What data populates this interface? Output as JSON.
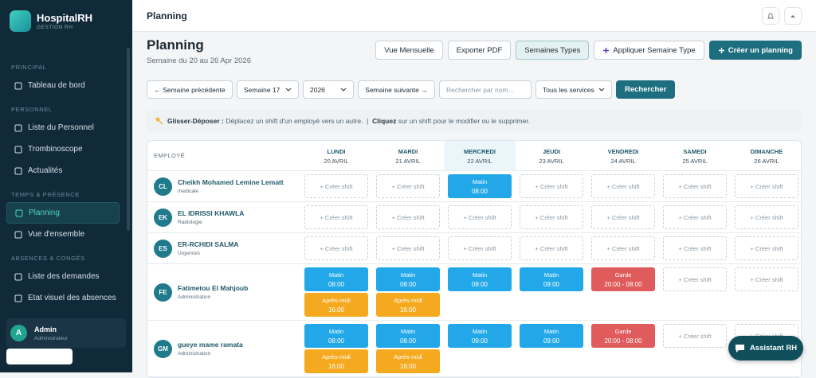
{
  "sidebar": {
    "brand": "HospitalRH",
    "tagline": "GESTION RH",
    "sections": [
      {
        "title": "PRINCIPAL",
        "items": [
          "Tableau de bord"
        ]
      },
      {
        "title": "PERSONNEL",
        "items": [
          "Liste du Personnel",
          "Trombinoscope",
          "Actualités"
        ]
      },
      {
        "title": "TEMPS & PRÉSENCE",
        "items": [
          "Planning",
          "Vue d'ensemble"
        ]
      },
      {
        "title": "ABSENCES & CONGÉS",
        "items": [
          "Liste des demandes",
          "Etat visuel des absences"
        ]
      }
    ],
    "active_item": "Planning",
    "user": {
      "initial": "A",
      "name": "Admin",
      "role": "Administrateur"
    }
  },
  "topbar": {
    "title": "Planning"
  },
  "header": {
    "title": "Planning",
    "subtitle": "Semaine du 20 au 26 Apr 2026",
    "buttons": [
      "Vue Mensuelle",
      "Exporter PDF",
      "Semaines Types",
      "Appliquer Semaine Type",
      "Créer un planning"
    ]
  },
  "filters": {
    "prev": "← Semaine précédente",
    "week": "Semaine 17",
    "year": "2026",
    "next": "Semaine suivante →",
    "search_placeholder": "Rechercher par nom...",
    "service": "Tous les services",
    "search_button": "Rechercher"
  },
  "hint": {
    "drag_label": "Glisser-Déposer :",
    "drag_text": " Déplacez un shift d'un employé vers un autre.  |  ",
    "click_label": "Cliquez",
    "click_text": " sur un shift pour le modifier ou le supprimer."
  },
  "planning": {
    "employee_header": "EMPLOYÉ",
    "create_label": "+ Créer shift",
    "days": [
      {
        "name": "LUNDI",
        "date": "20 AVRIL"
      },
      {
        "name": "MARDI",
        "date": "21 AVRIL"
      },
      {
        "name": "MERCREDI",
        "date": "22 AVRIL"
      },
      {
        "name": "JEUDI",
        "date": "23 AVRIL"
      },
      {
        "name": "VENDREDI",
        "date": "24 AVRIL"
      },
      {
        "name": "SAMEDI",
        "date": "25 AVRIL"
      },
      {
        "name": "DIMANCHE",
        "date": "26 AVRIL"
      }
    ],
    "highlight_day": 2,
    "rows": [
      {
        "initials": "CL",
        "name": "Cheikh Mohamed Lemine Lematt",
        "department": "medicale",
        "cells": [
          [],
          [],
          [
            {
              "label": "Matin",
              "time": "08:00",
              "kind": "matin"
            }
          ],
          [],
          [],
          [],
          []
        ]
      },
      {
        "initials": "EK",
        "name": "EL IDRISSI KHAWLA",
        "department": "Radiologie",
        "cells": [
          [],
          [],
          [],
          [],
          [],
          [],
          []
        ]
      },
      {
        "initials": "ES",
        "name": "ER-RCHIDI SALMA",
        "department": "Urgences",
        "cells": [
          [],
          [],
          [],
          [],
          [],
          [],
          []
        ]
      },
      {
        "initials": "FE",
        "name": "Fatimetou El Mahjoub",
        "department": "Administration",
        "cells": [
          [
            {
              "label": "Matin",
              "time": "08:00",
              "kind": "matin"
            },
            {
              "label": "Après-midi",
              "time": "16:00",
              "kind": "apres-midi"
            }
          ],
          [
            {
              "label": "Matin",
              "time": "08:00",
              "kind": "matin"
            },
            {
              "label": "Après-midi",
              "time": "16:00",
              "kind": "apres-midi"
            }
          ],
          [
            {
              "label": "Matin",
              "time": "09:00",
              "kind": "matin"
            }
          ],
          [
            {
              "label": "Matin",
              "time": "09:00",
              "kind": "matin"
            }
          ],
          [
            {
              "label": "Garde",
              "time": "20:00 - 08:00",
              "kind": "garde"
            }
          ],
          [],
          []
        ]
      },
      {
        "initials": "GM",
        "name": "gueye mame ramata",
        "department": "Administration",
        "cells": [
          [
            {
              "label": "Matin",
              "time": "08:00",
              "kind": "matin"
            },
            {
              "label": "Après-midi",
              "time": "16:00",
              "kind": "apres-midi"
            }
          ],
          [
            {
              "label": "Matin",
              "time": "08:00",
              "kind": "matin"
            },
            {
              "label": "Après-midi",
              "time": "16:00",
              "kind": "apres-midi"
            }
          ],
          [
            {
              "label": "Matin",
              "time": "09:00",
              "kind": "matin"
            }
          ],
          [
            {
              "label": "Matin",
              "time": "09:00",
              "kind": "matin"
            }
          ],
          [
            {
              "label": "Garde",
              "time": "20:00 - 08:00",
              "kind": "garde"
            }
          ],
          [],
          []
        ]
      }
    ]
  },
  "assistant": "Assistant RH"
}
